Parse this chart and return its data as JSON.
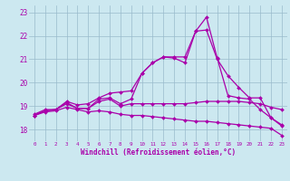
{
  "xlabel": "Windchill (Refroidissement éolien,°C)",
  "bg_color": "#cce8f0",
  "line_color": "#aa00aa",
  "grid_color": "#99bbcc",
  "text_color": "#aa00aa",
  "ylim": [
    17.5,
    23.3
  ],
  "xlim": [
    -0.5,
    23.5
  ],
  "yticks": [
    18,
    19,
    20,
    21,
    22,
    23
  ],
  "xticks": [
    0,
    1,
    2,
    3,
    4,
    5,
    6,
    7,
    8,
    9,
    10,
    11,
    12,
    13,
    14,
    15,
    16,
    17,
    18,
    19,
    20,
    21,
    22,
    23
  ],
  "series": [
    {
      "x": [
        0,
        1,
        2,
        3,
        4,
        5,
        6,
        7,
        8,
        9,
        10,
        11,
        12,
        13,
        14,
        15,
        16,
        17,
        18,
        19,
        20,
        21,
        22,
        23
      ],
      "y": [
        18.6,
        18.8,
        18.85,
        19.2,
        19.05,
        19.1,
        19.35,
        19.55,
        19.6,
        19.65,
        20.4,
        20.85,
        21.1,
        21.1,
        21.1,
        22.2,
        22.8,
        21.05,
        19.45,
        19.35,
        19.3,
        18.85,
        18.5,
        18.2
      ]
    },
    {
      "x": [
        0,
        1,
        2,
        3,
        4,
        5,
        6,
        7,
        8,
        9,
        10,
        11,
        12,
        13,
        14,
        15,
        16,
        17,
        18,
        19,
        20,
        21,
        22,
        23
      ],
      "y": [
        18.6,
        18.8,
        18.85,
        19.1,
        18.9,
        18.9,
        19.3,
        19.35,
        19.1,
        19.3,
        20.4,
        20.85,
        21.1,
        21.05,
        20.85,
        22.2,
        22.25,
        21.0,
        20.3,
        19.8,
        19.35,
        19.35,
        18.5,
        18.15
      ]
    },
    {
      "x": [
        0,
        1,
        2,
        3,
        4,
        5,
        6,
        7,
        8,
        9,
        10,
        11,
        12,
        13,
        14,
        15,
        16,
        17,
        18,
        19,
        20,
        21,
        22,
        23
      ],
      "y": [
        18.65,
        18.85,
        18.85,
        19.15,
        18.9,
        18.9,
        19.2,
        19.3,
        19.0,
        19.1,
        19.1,
        19.1,
        19.1,
        19.1,
        19.1,
        19.15,
        19.2,
        19.2,
        19.2,
        19.2,
        19.15,
        19.1,
        18.95,
        18.85
      ]
    },
    {
      "x": [
        0,
        1,
        2,
        3,
        4,
        5,
        6,
        7,
        8,
        9,
        10,
        11,
        12,
        13,
        14,
        15,
        16,
        17,
        18,
        19,
        20,
        21,
        22,
        23
      ],
      "y": [
        18.6,
        18.75,
        18.8,
        18.95,
        18.85,
        18.75,
        18.8,
        18.75,
        18.65,
        18.6,
        18.6,
        18.55,
        18.5,
        18.45,
        18.4,
        18.35,
        18.35,
        18.3,
        18.25,
        18.2,
        18.15,
        18.1,
        18.05,
        17.75
      ]
    }
  ]
}
